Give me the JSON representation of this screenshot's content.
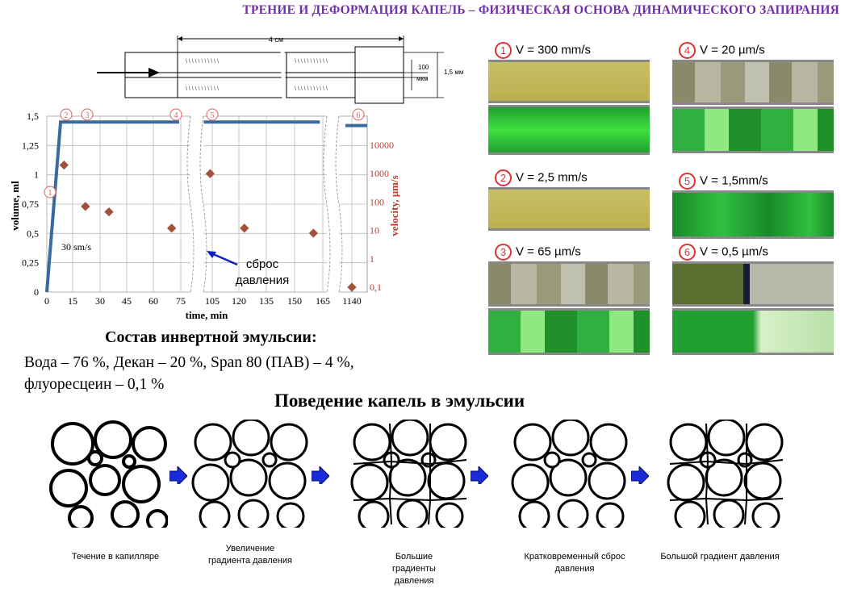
{
  "title": "ТРЕНИЕ И ДЕФОРМАЦИЯ КАПЕЛЬ – ФИЗИЧЕСКАЯ ОСНОВА ДИНАМИЧЕСКОГО ЗАПИРАНИЯ",
  "capillary": {
    "length_label": "4 см",
    "gap_label_line1": "100",
    "gap_label_line2": "мкм",
    "outer_label": "1,5 мм"
  },
  "chart_data": {
    "type": "line",
    "xlabel": "time, min",
    "ylabel": "volume, ml",
    "y2label": "velocity, µm/s",
    "x_ticks": [
      "0",
      "15",
      "30",
      "45",
      "60",
      "75",
      "105",
      "120",
      "135",
      "150",
      "165",
      "1140"
    ],
    "y_ticks": [
      "0",
      "0,25",
      "0,5",
      "0,75",
      "1",
      "1,25",
      "1,5"
    ],
    "y2_ticks": [
      "0,1",
      "1",
      "10",
      "100",
      "1000",
      "10000"
    ],
    "ylim": [
      0,
      1.5
    ],
    "y2lim_log": [
      0.1,
      10000
    ],
    "grid": true,
    "slope_label": "30 sm/s",
    "annotation": "сброс давления",
    "marker_labels": [
      "1",
      "2",
      "3",
      "4",
      "5",
      "6"
    ],
    "volume_series": {
      "name": "volume",
      "points": [
        [
          0,
          0
        ],
        [
          8,
          1.45
        ],
        [
          75,
          1.45
        ],
        [
          100,
          1.45
        ],
        [
          160,
          1.45
        ],
        [
          1140,
          1.42
        ]
      ]
    },
    "velocity_series": {
      "name": "velocity",
      "points": [
        [
          10,
          2000
        ],
        [
          22,
          70
        ],
        [
          35,
          45
        ],
        [
          70,
          12
        ],
        [
          103,
          1000
        ],
        [
          123,
          12
        ],
        [
          160,
          8
        ],
        [
          1140,
          0.1
        ]
      ]
    }
  },
  "photos": [
    {
      "num": "1",
      "label": "V = 300 mm/s"
    },
    {
      "num": "2",
      "label": "V = 2,5 mm/s"
    },
    {
      "num": "3",
      "label": "V = 65 µm/s"
    },
    {
      "num": "4",
      "label": "V = 20 µm/s"
    },
    {
      "num": "5",
      "label": "V = 1,5mm/s"
    },
    {
      "num": "6",
      "label": "V = 0,5 µm/s"
    }
  ],
  "composition": {
    "heading": "Состав инвертной эмульсии:",
    "line1": "Вода  – 76 %, Декан – 20 %, Span 80 (ПАВ) – 4 %,",
    "line2": "флуоресцеин – 0,1 %"
  },
  "behavior": {
    "heading": "Поведение капель в эмульсии",
    "stages": [
      "Течение в капилляре",
      "Увеличение градиента давления",
      "Большие градиенты давления",
      "Кратковременный сброс давления",
      "Большой градиент давления"
    ]
  }
}
